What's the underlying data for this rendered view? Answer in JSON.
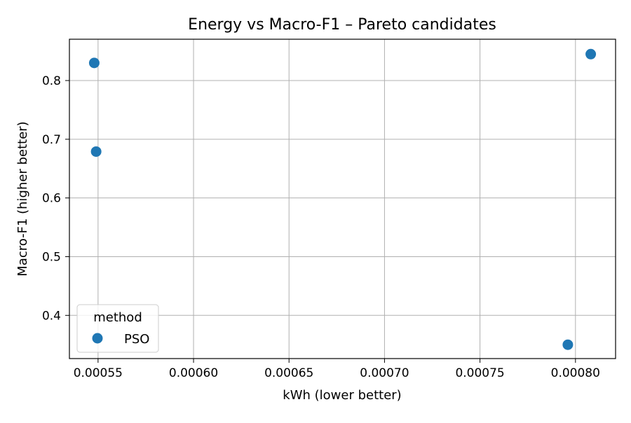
{
  "chart_data": {
    "type": "scatter",
    "title": "Energy vs Macro-F1 – Pareto candidates",
    "xlabel": "kWh (lower better)",
    "ylabel": "Macro-F1 (higher better)",
    "xlim": [
      0.000535,
      0.000821
    ],
    "ylim": [
      0.3264,
      0.8704
    ],
    "xticks": [
      "0.00055",
      "0.00060",
      "0.00065",
      "0.00070",
      "0.00075",
      "0.00080"
    ],
    "xtick_values": [
      0.00055,
      0.0006,
      0.00065,
      0.0007,
      0.00075,
      0.0008
    ],
    "yticks": [
      "0.4",
      "0.5",
      "0.6",
      "0.7",
      "0.8"
    ],
    "ytick_values": [
      0.4,
      0.5,
      0.6,
      0.7,
      0.8
    ],
    "grid": true,
    "legend": {
      "title": "method",
      "position": "lower-left",
      "entries": [
        "PSO"
      ]
    },
    "series": [
      {
        "name": "PSO",
        "color": "#1f77b4",
        "points": [
          {
            "x": 0.000548,
            "y": 0.83
          },
          {
            "x": 0.000549,
            "y": 0.679
          },
          {
            "x": 0.000808,
            "y": 0.845
          },
          {
            "x": 0.000796,
            "y": 0.35
          }
        ]
      }
    ]
  }
}
